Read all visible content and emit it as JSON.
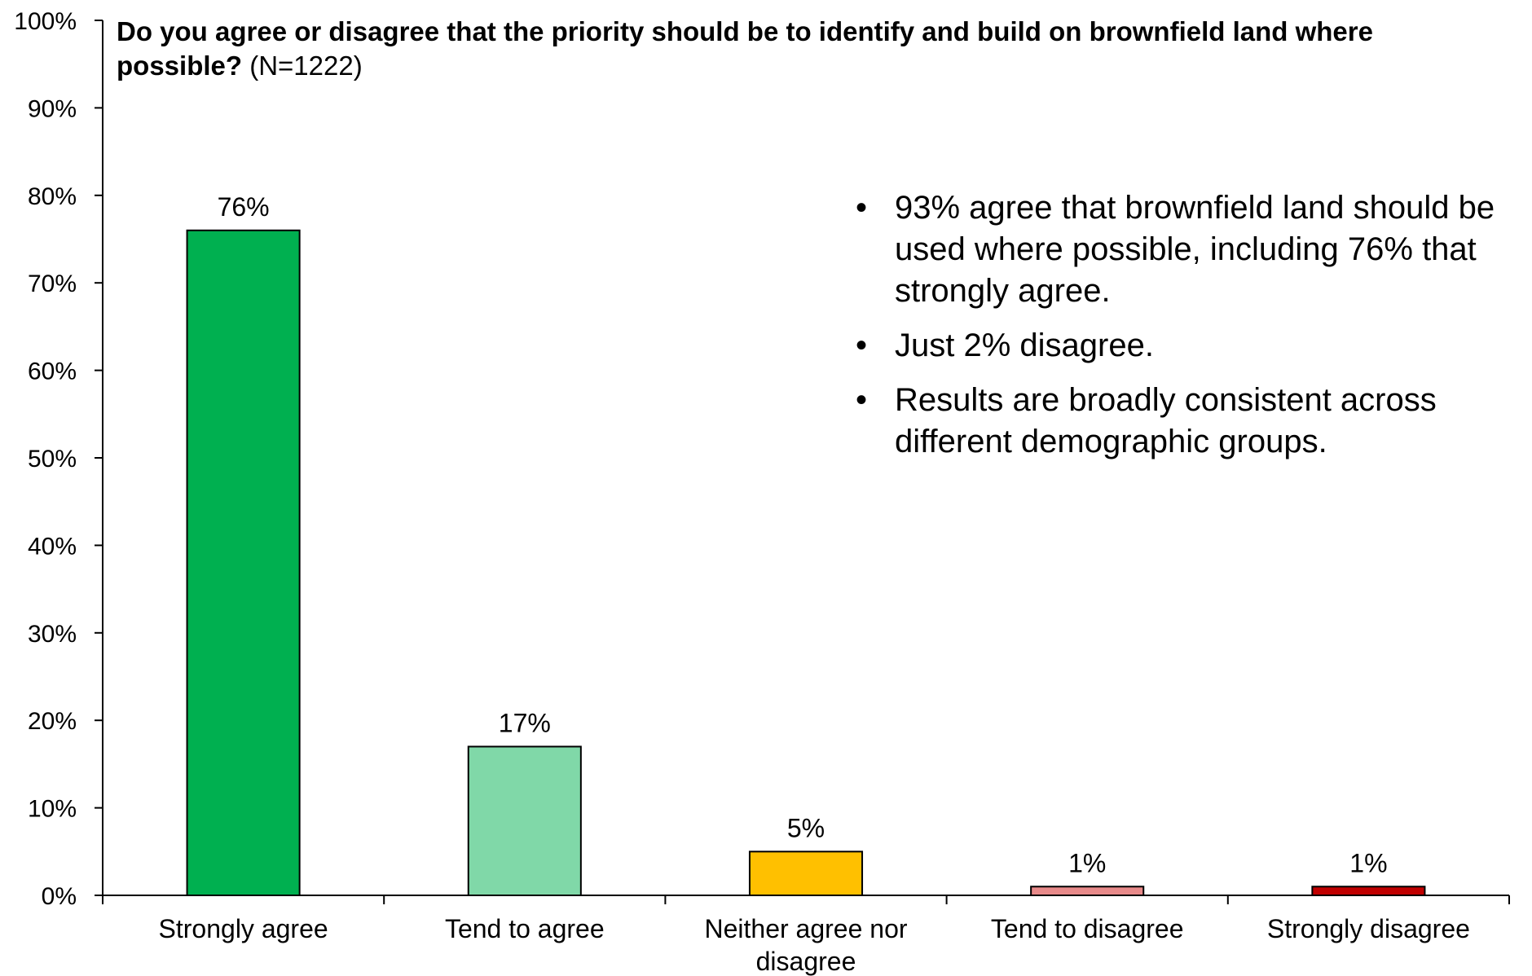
{
  "chart_data": {
    "type": "bar",
    "title": "Do you agree or disagree that the priority should be to identify and build on brownfield land where possible?",
    "subtitle": "(N=1222)",
    "categories": [
      "Strongly agree",
      "Tend to agree",
      "Neither agree nor disagree",
      "Tend to disagree",
      "Strongly disagree"
    ],
    "category_lines": [
      [
        "Strongly agree"
      ],
      [
        "Tend to agree"
      ],
      [
        "Neither agree nor",
        "disagree"
      ],
      [
        "Tend to disagree"
      ],
      [
        "Strongly disagree"
      ]
    ],
    "values": [
      76,
      17,
      5,
      1,
      1
    ],
    "data_labels": [
      "76%",
      "17%",
      "5%",
      "1%",
      "1%"
    ],
    "colors": [
      "#00b050",
      "#80d8a8",
      "#ffc000",
      "#e88a8a",
      "#c00000"
    ],
    "ylim": [
      0,
      100
    ],
    "yticks": [
      "0%",
      "10%",
      "20%",
      "30%",
      "40%",
      "50%",
      "60%",
      "70%",
      "80%",
      "90%",
      "100%"
    ],
    "grid": false,
    "xlabel": "",
    "ylabel": ""
  },
  "notes": [
    "93% agree that brownfield land should be used where possible, including 76% that strongly agree.",
    "Just 2% disagree.",
    "Results are broadly consistent across different demographic groups."
  ],
  "bullet_glyph": "•"
}
